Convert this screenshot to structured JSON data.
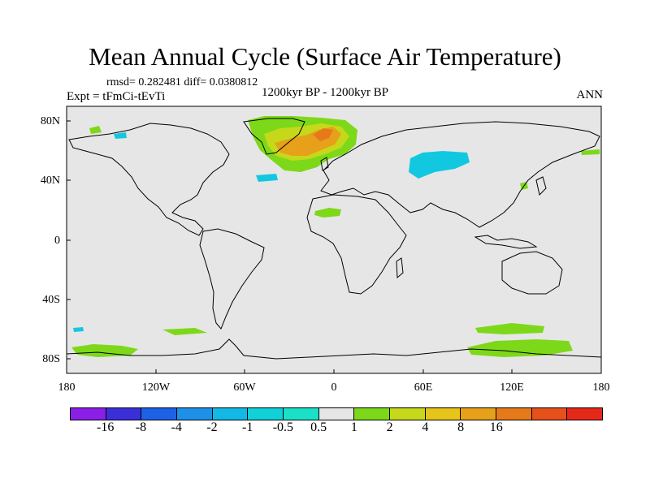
{
  "title": "Mean Annual Cycle (Surface Air Temperature)",
  "stats": "rmsd= 0.282481  diff= 0.0380812",
  "experiment": "Expt = tFmCi-tEvTi",
  "period": "1200kyr BP - 1200kyr BP",
  "season": "ANN",
  "lat_labels": [
    "80N",
    "40N",
    "0",
    "40S",
    "80S"
  ],
  "lon_labels": [
    "180",
    "120W",
    "60W",
    "0",
    "60E",
    "120E",
    "180"
  ],
  "colorbar": {
    "labels": [
      "-16",
      "-8",
      "-4",
      "-2",
      "-1",
      "-0.5",
      "0.5",
      "1",
      "2",
      "4",
      "8",
      "16"
    ],
    "colors": [
      "#8a1fe8",
      "#3a2fd8",
      "#1d62e6",
      "#1e90e8",
      "#12b8e6",
      "#10d0d8",
      "#1be0c8",
      "#e6e6e6",
      "#7ed81a",
      "#c6d81a",
      "#e6c41a",
      "#e6a01a",
      "#e67a1a",
      "#e6501a",
      "#e6281a"
    ]
  },
  "colors": {
    "background": "#e6e6e6",
    "coast": "#000000"
  }
}
